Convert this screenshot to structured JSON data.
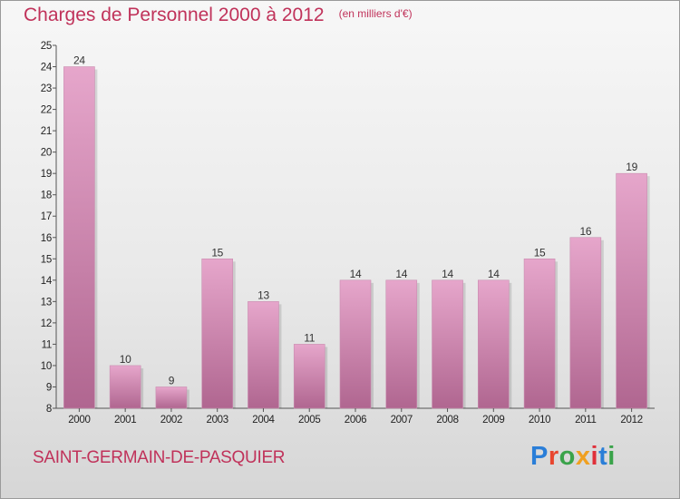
{
  "title": "Charges de Personnel 2000 à 2012",
  "subtitle": "(en milliers d'€)",
  "place_name": "SAINT-GERMAIN-DE-PASQUIER",
  "brand": {
    "text": "Proxiti",
    "letter_colors": [
      "#2a7ed8",
      "#e8452e",
      "#3aa34a",
      "#f0a020",
      "#e0303a",
      "#2a7ed8",
      "#3aa34a"
    ]
  },
  "colors": {
    "title": "#c0325a",
    "bar_top": "#e6a6cb",
    "bar_bottom": "#b06690",
    "axis": "#555555"
  },
  "chart_data": {
    "type": "bar",
    "title": "Charges de Personnel 2000 à 2012",
    "subtitle": "(en milliers d'€)",
    "xlabel": "",
    "ylabel": "",
    "categories": [
      "2000",
      "2001",
      "2002",
      "2003",
      "2004",
      "2005",
      "2006",
      "2007",
      "2008",
      "2009",
      "2010",
      "2011",
      "2012"
    ],
    "values": [
      24,
      10,
      9,
      15,
      13,
      11,
      14,
      14,
      14,
      14,
      15,
      16,
      19
    ],
    "ylim": [
      8,
      25
    ],
    "yticks": [
      8,
      9,
      10,
      11,
      12,
      13,
      14,
      15,
      16,
      17,
      18,
      19,
      20,
      21,
      22,
      23,
      24,
      25
    ],
    "grid": false,
    "legend": "none"
  }
}
